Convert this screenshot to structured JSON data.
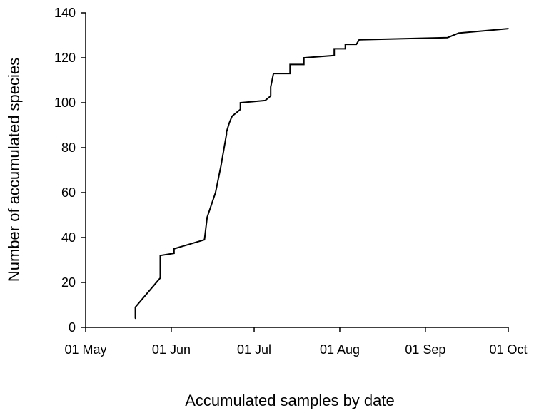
{
  "chart_data": {
    "type": "line",
    "title": "",
    "xlabel": "Accumulated samples by date",
    "ylabel": "Number of accumulated species",
    "x_axis_type": "date",
    "xlim": [
      "2023-05-01",
      "2023-10-01"
    ],
    "ylim": [
      0,
      140
    ],
    "x_ticks": [
      {
        "date": "2023-05-01",
        "label": "01 May"
      },
      {
        "date": "2023-06-01",
        "label": "01 Jun"
      },
      {
        "date": "2023-07-01",
        "label": "01 Jul"
      },
      {
        "date": "2023-08-01",
        "label": "01 Aug"
      },
      {
        "date": "2023-09-01",
        "label": "01 Sep"
      },
      {
        "date": "2023-10-01",
        "label": "01 Oct"
      }
    ],
    "y_ticks": [
      0,
      20,
      40,
      60,
      80,
      100,
      120,
      140
    ],
    "grid": false,
    "legend": "none",
    "line_color": "#000000",
    "series": [
      {
        "x": [
          "2023-05-19",
          "2023-05-19",
          "2023-05-28",
          "2023-05-28",
          "2023-06-02",
          "2023-06-02",
          "2023-06-13",
          "2023-06-14",
          "2023-06-17",
          "2023-06-19",
          "2023-06-21",
          "2023-06-21",
          "2023-06-22",
          "2023-06-23",
          "2023-06-26",
          "2023-06-26",
          "2023-07-05",
          "2023-07-07",
          "2023-07-07",
          "2023-07-08",
          "2023-07-09",
          "2023-07-14",
          "2023-07-14",
          "2023-07-19",
          "2023-07-19",
          "2023-07-30",
          "2023-07-30",
          "2023-08-03",
          "2023-08-03",
          "2023-08-07",
          "2023-08-08",
          "2023-09-09",
          "2023-09-13",
          "2023-10-01"
        ],
        "y": [
          4,
          9,
          22,
          32,
          33,
          35,
          39,
          49,
          60,
          72,
          86,
          87,
          91,
          94,
          97,
          100,
          101,
          103,
          107,
          113,
          113,
          113,
          117,
          117,
          120,
          121,
          124,
          124,
          126,
          126,
          128,
          129,
          131,
          133
        ]
      }
    ]
  }
}
